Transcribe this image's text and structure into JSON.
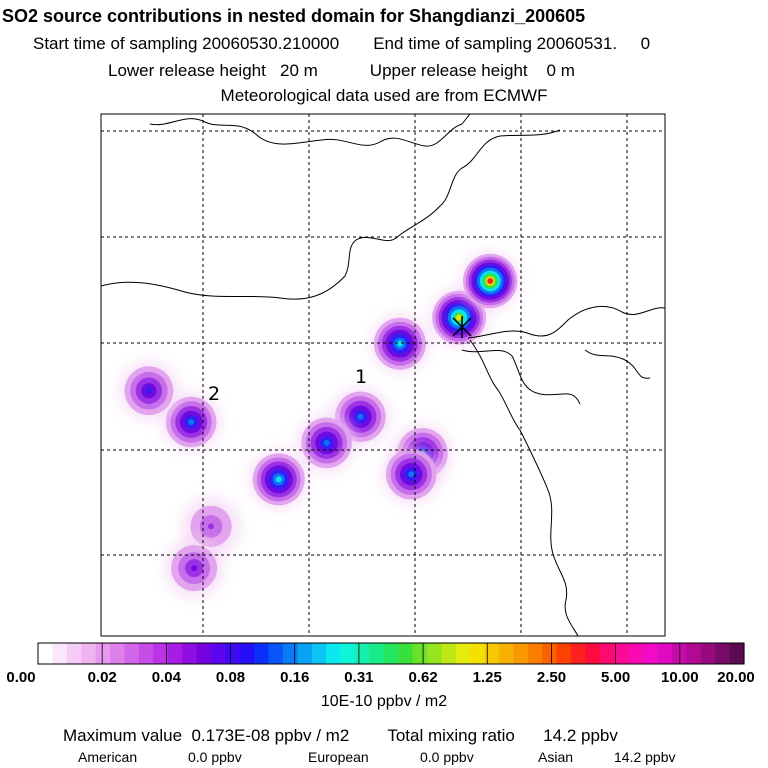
{
  "header": {
    "title": "SO2 source contributions in nested domain for Shangdianzi_200605",
    "start_label": "Start time of sampling 20060530.210000",
    "end_label": "End time of sampling 20060531.     0",
    "lower_label": "Lower release height   20 m",
    "upper_label": "Upper release height    0 m",
    "met_label": "Meteorological data used are from ECMWF"
  },
  "map": {
    "source_labels": [
      "1",
      "2"
    ],
    "receptor_marker": "x-cross",
    "grid": true
  },
  "chart_data": {
    "type": "heatmap",
    "title": "SO2 source contributions in nested domain for Shangdianzi_200605",
    "colorbar_ticks": [
      "0.00",
      "0.02",
      "0.04",
      "0.08",
      "0.16",
      "0.31",
      "0.62",
      "1.25",
      "2.50",
      "5.00",
      "10.00",
      "20.00"
    ],
    "colorbar_colors": [
      "#ffffff",
      "#fbe6fb",
      "#f5ccf5",
      "#efb3f1",
      "#e699ee",
      "#de7fec",
      "#d466ea",
      "#c84de8",
      "#bb33e6",
      "#a81de4",
      "#8f0fe2",
      "#7500e0",
      "#5c05ef",
      "#3f0af5",
      "#240ff8",
      "#0a2ffa",
      "#0a55f8",
      "#0a7bf6",
      "#0aa0f4",
      "#0ac4f2",
      "#0be8f0",
      "#10f5d8",
      "#15f0b0",
      "#1aeb88",
      "#22e660",
      "#3ae03a",
      "#6ae02a",
      "#95e41e",
      "#bde815",
      "#e4ec0d",
      "#f5e000",
      "#f7c800",
      "#f8b000",
      "#f99800",
      "#fa7f00",
      "#fb6000",
      "#fc4000",
      "#fd2020",
      "#fd0a40",
      "#fd0a70",
      "#fb0a95",
      "#f80ab0",
      "#f20ac4",
      "#e00ac0",
      "#c80aaa",
      "#b00a94",
      "#960a7e",
      "#7a0a68",
      "#5c0a52"
    ],
    "units": "10E-10 ppbv / m2",
    "plumes": [
      {
        "lon_frac": 0.53,
        "lat_frac": 0.44,
        "level": 7
      },
      {
        "lon_frac": 0.635,
        "lat_frac": 0.39,
        "level": 9
      },
      {
        "lon_frac": 0.69,
        "lat_frac": 0.32,
        "level": 10
      },
      {
        "lon_frac": 0.46,
        "lat_frac": 0.58,
        "level": 6
      },
      {
        "lon_frac": 0.4,
        "lat_frac": 0.63,
        "level": 6
      },
      {
        "lon_frac": 0.315,
        "lat_frac": 0.7,
        "level": 7
      },
      {
        "lon_frac": 0.57,
        "lat_frac": 0.65,
        "level": 6
      },
      {
        "lon_frac": 0.55,
        "lat_frac": 0.69,
        "level": 6
      },
      {
        "lon_frac": 0.16,
        "lat_frac": 0.59,
        "level": 6
      },
      {
        "lon_frac": 0.085,
        "lat_frac": 0.53,
        "level": 5
      },
      {
        "lon_frac": 0.195,
        "lat_frac": 0.79,
        "level": 3
      },
      {
        "lon_frac": 0.165,
        "lat_frac": 0.87,
        "level": 4
      }
    ]
  },
  "stats": {
    "max_label": "Maximum value  0.173E-08 ppbv / m2",
    "total_label": "Total mixing ratio      14.2 ppbv",
    "american_label": "American",
    "american_value": "0.0 ppbv",
    "european_label": "European",
    "european_value": "0.0 ppbv",
    "asian_label": "Asian",
    "asian_value": "14.2 ppbv"
  }
}
